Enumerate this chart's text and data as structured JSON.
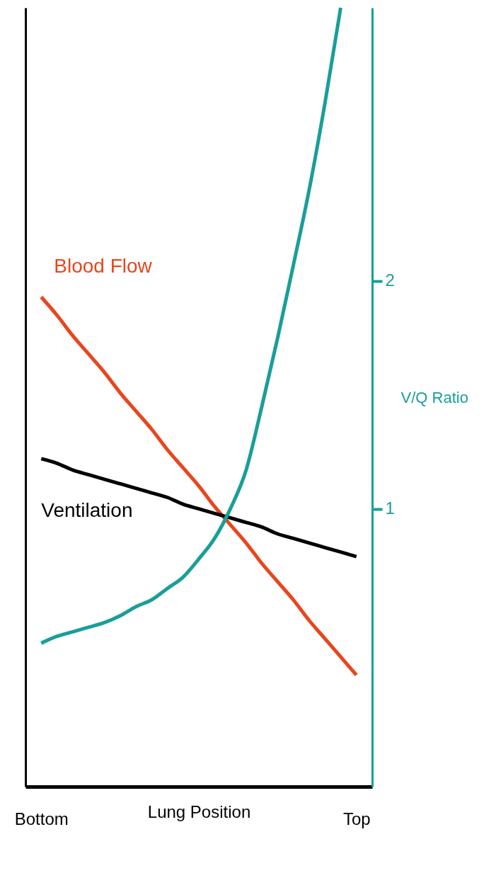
{
  "chart_data": {
    "type": "line",
    "xlabel": "Lung Position",
    "y2label": "V/Q Ratio",
    "categories": [
      "Bottom",
      null,
      null,
      null,
      null,
      null,
      null,
      null,
      null,
      null,
      null,
      null,
      null,
      null,
      null,
      null,
      null,
      null,
      null,
      null,
      "Top"
    ],
    "y2lim": [
      -0.22,
      3.2
    ],
    "y2ticks": [
      1,
      2
    ],
    "series": [
      {
        "name": "Blood Flow",
        "color": "#e8461e",
        "axis": "y2",
        "values": [
          1.93,
          1.85,
          1.76,
          1.68,
          1.6,
          1.51,
          1.43,
          1.35,
          1.26,
          1.18,
          1.1,
          1.01,
          0.93,
          0.85,
          0.76,
          0.68,
          0.6,
          0.51,
          0.43,
          0.35,
          0.27
        ]
      },
      {
        "name": "Ventilation",
        "color": "#000000",
        "axis": "y2",
        "values": [
          1.22,
          1.2,
          1.17,
          1.15,
          1.13,
          1.11,
          1.09,
          1.07,
          1.05,
          1.02,
          1.0,
          0.98,
          0.96,
          0.94,
          0.92,
          0.89,
          0.87,
          0.85,
          0.83,
          0.81,
          0.79
        ]
      },
      {
        "color": "#1a9e9a",
        "axis": "y2",
        "values": [
          0.41,
          0.44,
          0.46,
          0.48,
          0.5,
          0.53,
          0.57,
          0.6,
          0.65,
          0.7,
          0.78,
          0.87,
          1.0,
          1.17,
          1.45,
          1.75,
          2.07,
          2.4,
          2.78,
          3.2,
          null
        ]
      }
    ]
  }
}
